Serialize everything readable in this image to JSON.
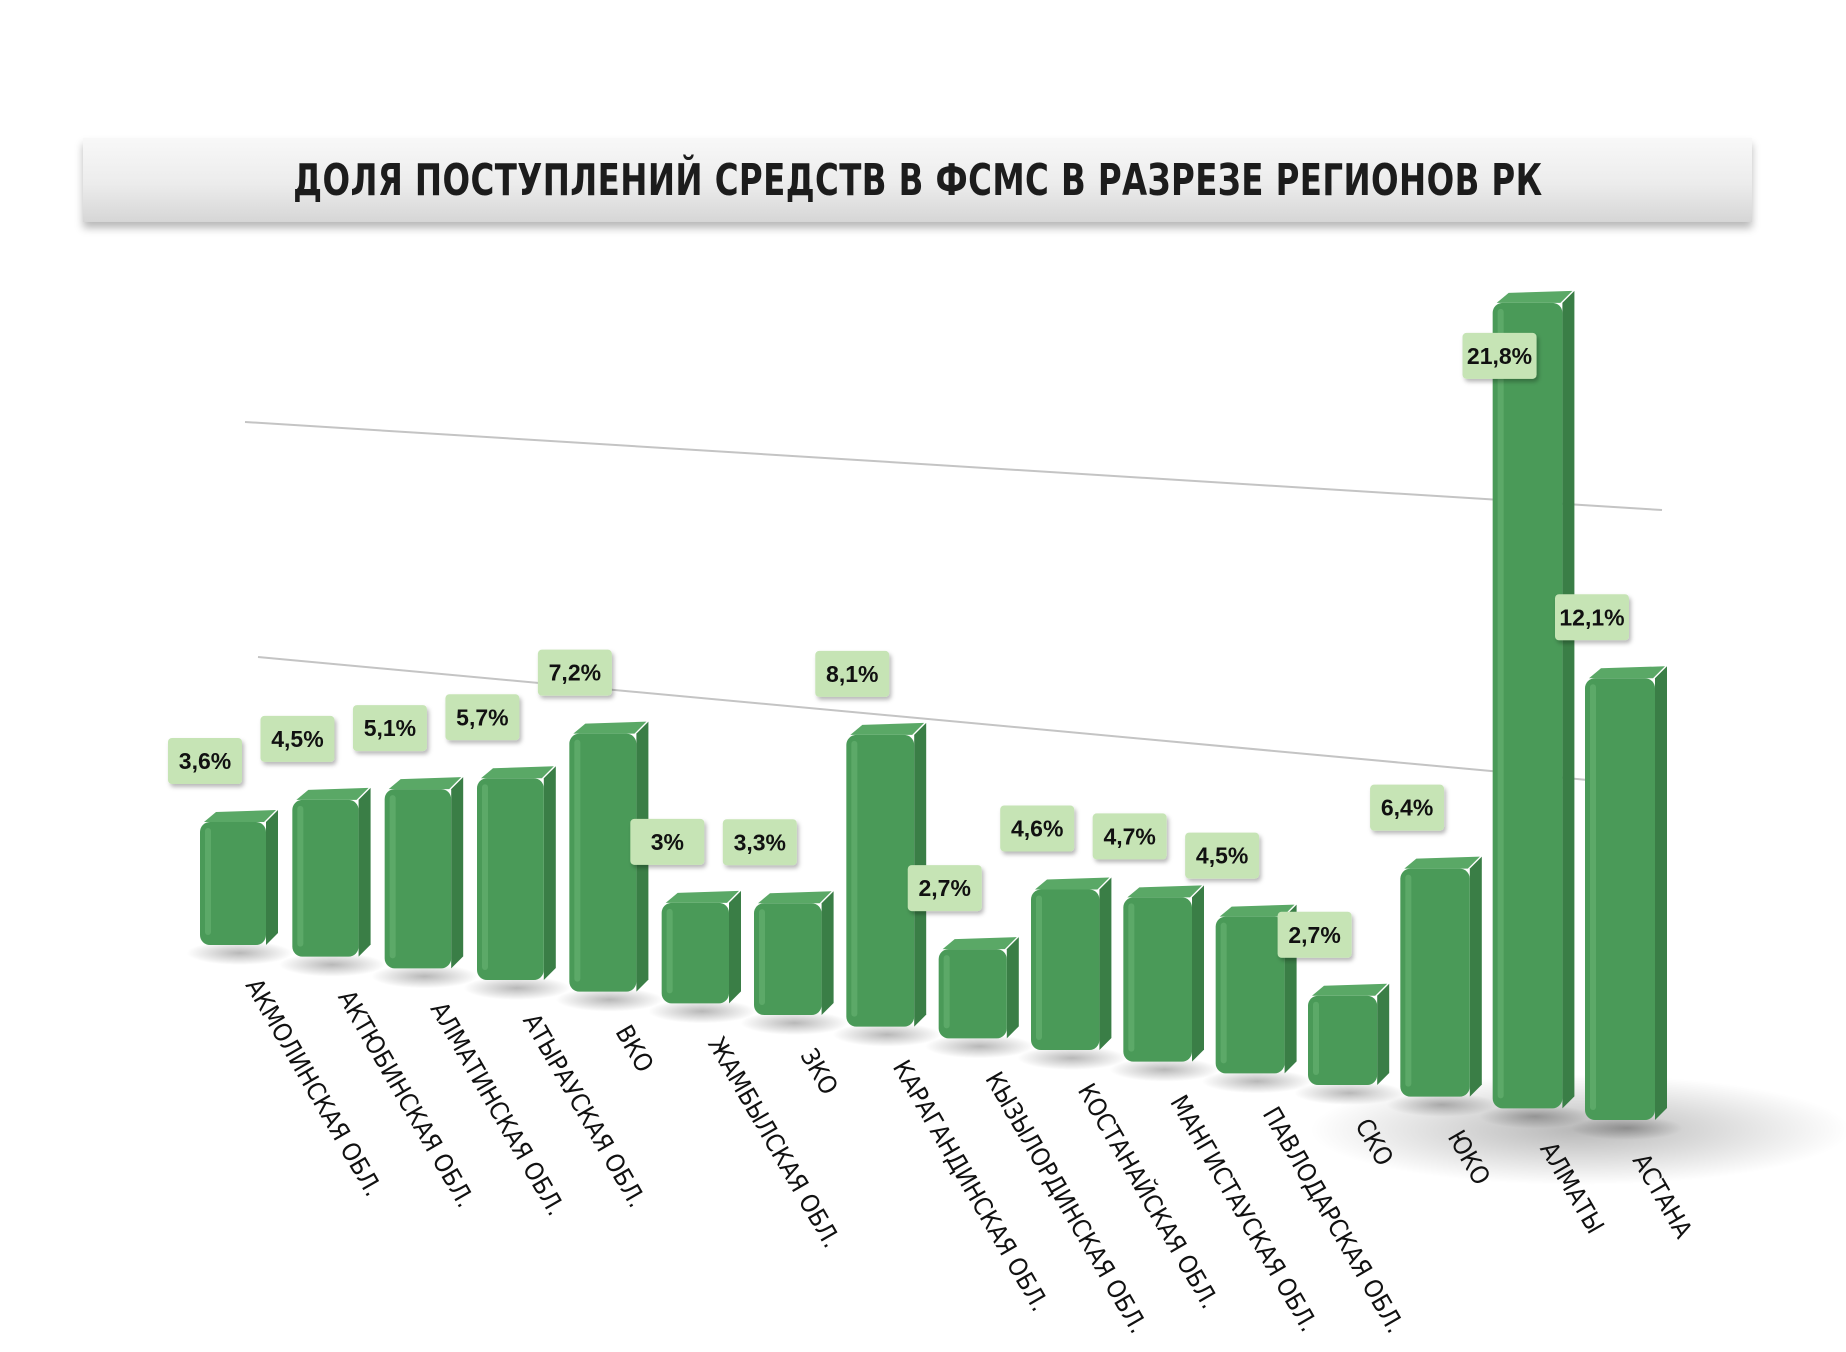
{
  "title": "ДОЛЯ ПОСТУПЛЕНИЙ СРЕДСТВ В ФСМС В РАЗРЕЗЕ РЕГИОНОВ РК",
  "chart_data": {
    "type": "bar",
    "title": "ДОЛЯ ПОСТУПЛЕНИЙ СРЕДСТВ В ФСМС В РАЗРЕЗЕ РЕГИОНОВ РК",
    "categories": [
      "АКМОЛИНСКАЯ ОБЛ.",
      "АКТЮБИНСКАЯ ОБЛ.",
      "АЛМАТИНСКАЯ ОБЛ.",
      "АТЫРАУСКАЯ ОБЛ.",
      "ВКО",
      "ЖАМБЫЛСКАЯ ОБЛ.",
      "ЗКО",
      "КАРАГАНДИНСКАЯ ОБЛ.",
      "КЫЗЫЛОРДИНСКАЯ ОБЛ.",
      "КОСТАНАЙСКАЯ ОБЛ.",
      "МАНГИСТАУСКАЯ ОБЛ.",
      "ПАВЛОДАРСКАЯ ОБЛ.",
      "СКО",
      "ЮКО",
      "АЛМАТЫ",
      "АСТАНА"
    ],
    "values": [
      3.6,
      4.5,
      5.1,
      5.7,
      7.2,
      3,
      3.3,
      8.1,
      2.7,
      4.6,
      4.7,
      4.5,
      2.7,
      6.4,
      21.8,
      12.1
    ],
    "data_labels": [
      "3,6%",
      "4,5%",
      "5,1%",
      "5,7%",
      "7,2%",
      "3%",
      "3,3%",
      "8,1%",
      "2,7%",
      "4,6%",
      "4,7%",
      "4,5%",
      "2,7%",
      "6,4%",
      "21,8%",
      "12,1%"
    ],
    "unit": "%",
    "style": "3d-perspective",
    "grid": true,
    "legend": "none",
    "colors": {
      "bar": "#4a9a58",
      "bar_top": "#5aa866",
      "bar_side": "#3a7e46",
      "label_bg": "#c6e4b5"
    }
  }
}
